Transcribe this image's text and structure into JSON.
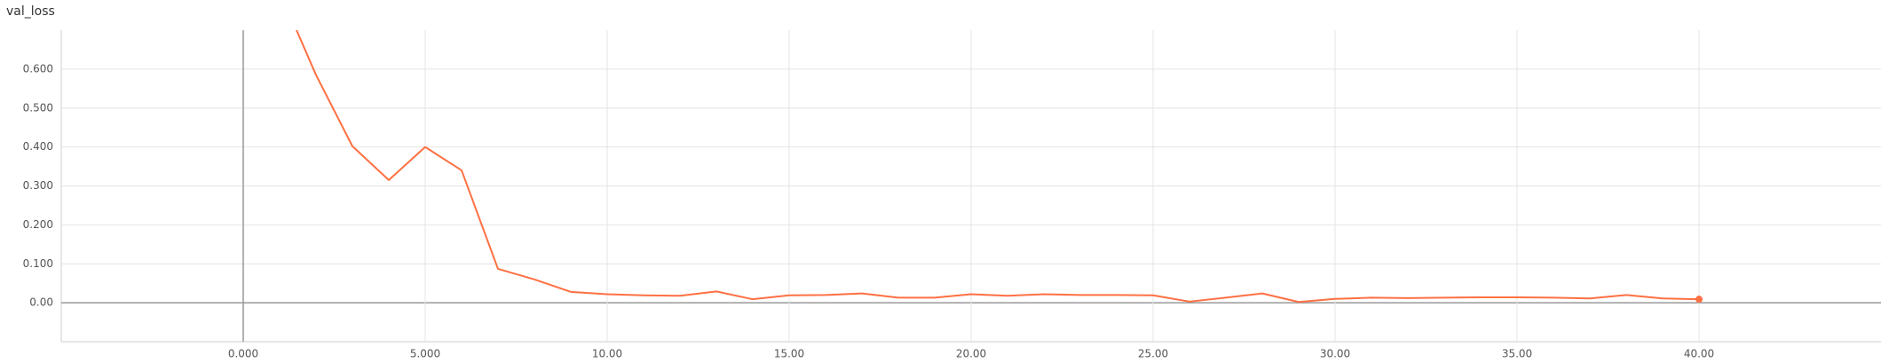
{
  "chart_data": {
    "type": "line",
    "title": "val_loss",
    "x": [
      1,
      2,
      3,
      4,
      5,
      6,
      7,
      8,
      9,
      10,
      11,
      12,
      13,
      14,
      15,
      16,
      17,
      18,
      19,
      20,
      21,
      22,
      23,
      24,
      25,
      26,
      27,
      28,
      29,
      30,
      31,
      32,
      33,
      34,
      35,
      36,
      37,
      38,
      39,
      40
    ],
    "series": [
      {
        "name": "val_loss",
        "color": "#ff7043",
        "values": [
          0.8,
          0.585,
          0.402,
          0.315,
          0.4,
          0.34,
          0.087,
          0.06,
          0.028,
          0.022,
          0.019,
          0.018,
          0.029,
          0.009,
          0.019,
          0.02,
          0.024,
          0.013,
          0.013,
          0.022,
          0.018,
          0.022,
          0.02,
          0.02,
          0.019,
          0.003,
          0.013,
          0.024,
          0.002,
          0.01,
          0.013,
          0.012,
          0.013,
          0.014,
          0.014,
          0.013,
          0.011,
          0.02,
          0.011,
          0.009
        ]
      }
    ],
    "xlim": [
      -5,
      45
    ],
    "ylim": [
      -0.1,
      0.7
    ],
    "xticks": [
      {
        "value": 0,
        "label": "0.000"
      },
      {
        "value": 5,
        "label": "5.000"
      },
      {
        "value": 10,
        "label": "10.00"
      },
      {
        "value": 15,
        "label": "15.00"
      },
      {
        "value": 20,
        "label": "20.00"
      },
      {
        "value": 25,
        "label": "25.00"
      },
      {
        "value": 30,
        "label": "30.00"
      },
      {
        "value": 35,
        "label": "35.00"
      },
      {
        "value": 40,
        "label": "40.00"
      }
    ],
    "yticks": [
      {
        "value": 0,
        "label": "0.00"
      },
      {
        "value": 0.1,
        "label": "0.100"
      },
      {
        "value": 0.2,
        "label": "0.200"
      },
      {
        "value": 0.3,
        "label": "0.300"
      },
      {
        "value": 0.4,
        "label": "0.400"
      },
      {
        "value": 0.5,
        "label": "0.500"
      },
      {
        "value": 0.6,
        "label": "0.600"
      }
    ],
    "grid": true
  }
}
